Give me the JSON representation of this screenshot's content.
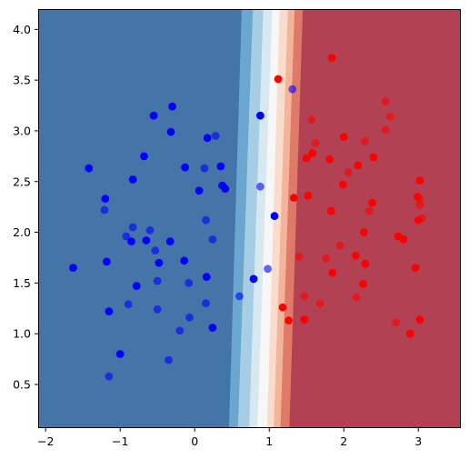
{
  "chart_data": {
    "type": "scatter",
    "title": "",
    "xlabel": "",
    "ylabel": "",
    "xlim": [
      -2.1,
      3.57
    ],
    "ylim": [
      0.07,
      4.2
    ],
    "grid": false,
    "legend": "none",
    "x_ticks": [
      -2,
      -1,
      0,
      1,
      2,
      3
    ],
    "y_ticks": [
      0.5,
      1.0,
      1.5,
      2.0,
      2.5,
      3.0,
      3.5,
      4.0
    ],
    "x_tick_labels": [
      "−2",
      "−1",
      "0",
      "1",
      "2",
      "3"
    ],
    "y_tick_labels": [
      "0.5",
      "1.0",
      "1.5",
      "2.0",
      "2.5",
      "3.0",
      "3.5",
      "4.0"
    ],
    "background": {
      "kind": "decision-boundary contour",
      "colormap": "RdBu_r",
      "bands": [
        {
          "x_bottom": -2.1,
          "x_top": -2.1,
          "color": "#4574a8"
        },
        {
          "x_bottom": 0.46,
          "x_top": 0.63,
          "color": "#6aa6cf"
        },
        {
          "x_bottom": 0.58,
          "x_top": 0.78,
          "color": "#a6cde3"
        },
        {
          "x_bottom": 0.73,
          "x_top": 0.92,
          "color": "#d7e8f1"
        },
        {
          "x_bottom": 0.84,
          "x_top": 1.04,
          "color": "#f7f7f7"
        },
        {
          "x_bottom": 0.97,
          "x_top": 1.14,
          "color": "#f9dccc"
        },
        {
          "x_bottom": 1.06,
          "x_top": 1.25,
          "color": "#f4b49a"
        },
        {
          "x_bottom": 1.15,
          "x_top": 1.34,
          "color": "#de7a67"
        },
        {
          "x_bottom": 1.27,
          "x_top": 1.45,
          "color": "#b24153"
        }
      ]
    },
    "series": [
      {
        "class": "train-blue",
        "color": "#0000ff",
        "opacity": 1.0,
        "points": [
          [
            -1.63,
            1.65
          ],
          [
            -1.42,
            2.63
          ],
          [
            -1.2,
            2.33
          ],
          [
            -1.18,
            1.71
          ],
          [
            -1.15,
            1.22
          ],
          [
            -1.0,
            0.8
          ],
          [
            -0.85,
            1.91
          ],
          [
            -0.83,
            2.52
          ],
          [
            -0.78,
            1.47
          ],
          [
            -0.68,
            2.75
          ],
          [
            -0.65,
            1.92
          ],
          [
            -0.55,
            3.15
          ],
          [
            -0.48,
            1.7
          ],
          [
            -0.3,
            3.24
          ],
          [
            -0.32,
            2.99
          ],
          [
            -0.33,
            1.91
          ],
          [
            -0.13,
            2.64
          ],
          [
            -0.14,
            1.72
          ],
          [
            0.06,
            2.41
          ],
          [
            0.17,
            2.93
          ],
          [
            0.16,
            1.56
          ],
          [
            0.24,
            1.06
          ],
          [
            0.35,
            2.65
          ],
          [
            0.37,
            2.46
          ],
          [
            0.41,
            2.43
          ],
          [
            0.79,
            1.54
          ],
          [
            0.88,
            3.15
          ],
          [
            1.07,
            2.16
          ]
        ]
      },
      {
        "class": "test-blue",
        "color": "#0000ff",
        "opacity": 0.6,
        "points": [
          [
            -1.21,
            2.22
          ],
          [
            -1.15,
            0.58
          ],
          [
            -0.92,
            1.96
          ],
          [
            -0.89,
            1.29
          ],
          [
            -0.83,
            2.05
          ],
          [
            -0.6,
            2.02
          ],
          [
            -0.53,
            1.82
          ],
          [
            -0.5,
            1.52
          ],
          [
            -0.5,
            1.24
          ],
          [
            -0.35,
            0.74
          ],
          [
            -0.2,
            1.03
          ],
          [
            -0.07,
            1.16
          ],
          [
            -0.08,
            1.5
          ],
          [
            0.13,
            2.63
          ],
          [
            0.15,
            2.12
          ],
          [
            0.15,
            1.3
          ],
          [
            0.24,
            1.93
          ],
          [
            0.28,
            2.95
          ],
          [
            0.6,
            1.37
          ],
          [
            0.88,
            2.45
          ],
          [
            0.98,
            1.64
          ],
          [
            1.31,
            3.41
          ]
        ]
      },
      {
        "class": "train-red",
        "color": "#ff0000",
        "opacity": 1.0,
        "points": [
          [
            1.12,
            3.51
          ],
          [
            1.18,
            1.26
          ],
          [
            1.26,
            1.13
          ],
          [
            1.33,
            2.34
          ],
          [
            1.47,
            1.14
          ],
          [
            1.5,
            2.73
          ],
          [
            1.52,
            2.36
          ],
          [
            1.58,
            2.78
          ],
          [
            1.81,
            2.72
          ],
          [
            1.83,
            2.21
          ],
          [
            1.84,
            3.72
          ],
          [
            1.85,
            1.6
          ],
          [
            1.99,
            2.47
          ],
          [
            2.0,
            2.94
          ],
          [
            2.16,
            1.77
          ],
          [
            2.19,
            2.66
          ],
          [
            2.26,
            1.49
          ],
          [
            2.27,
            2.0
          ],
          [
            2.29,
            1.69
          ],
          [
            2.4,
            2.74
          ],
          [
            2.38,
            2.29
          ],
          [
            2.73,
            1.96
          ],
          [
            2.8,
            1.93
          ],
          [
            2.89,
            1.0
          ],
          [
            2.96,
            1.65
          ],
          [
            2.99,
            2.35
          ],
          [
            3.0,
            2.12
          ],
          [
            3.02,
            2.51
          ],
          [
            3.02,
            1.14
          ]
        ]
      },
      {
        "class": "test-red",
        "color": "#ff0000",
        "opacity": 0.6,
        "points": [
          [
            1.4,
            1.76
          ],
          [
            1.47,
            1.37
          ],
          [
            1.57,
            3.11
          ],
          [
            1.62,
            2.88
          ],
          [
            1.68,
            1.3
          ],
          [
            1.76,
            1.74
          ],
          [
            1.95,
            1.87
          ],
          [
            2.06,
            2.59
          ],
          [
            2.17,
            1.36
          ],
          [
            2.34,
            2.21
          ],
          [
            2.28,
            2.9
          ],
          [
            2.56,
            3.29
          ],
          [
            2.56,
            3.01
          ],
          [
            2.62,
            3.14
          ],
          [
            2.7,
            1.11
          ],
          [
            3.02,
            2.27
          ],
          [
            3.02,
            2.33
          ],
          [
            3.05,
            2.14
          ]
        ]
      }
    ]
  }
}
